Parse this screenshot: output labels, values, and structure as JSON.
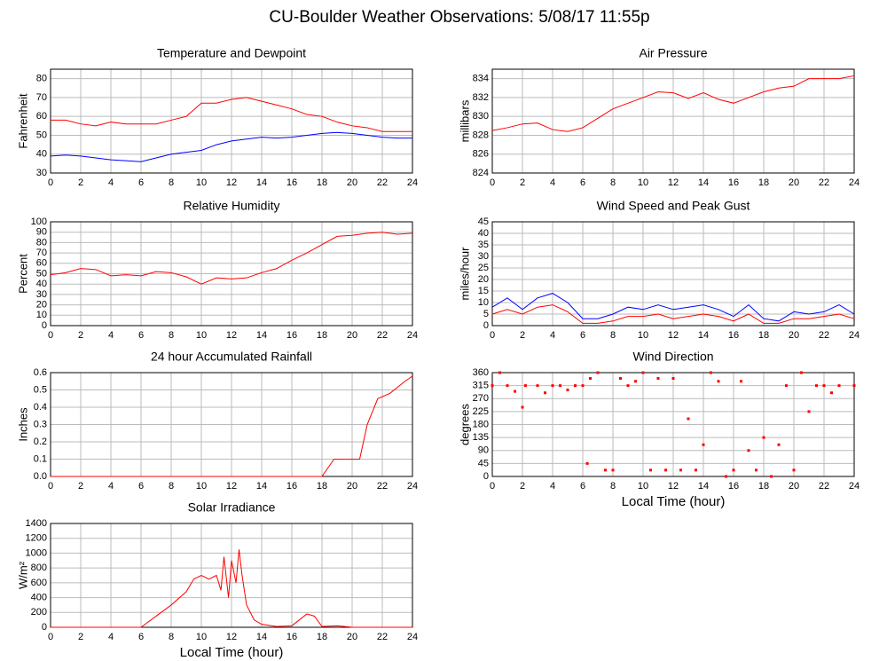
{
  "title": "CU-Boulder Weather Observations: 5/08/17 11:55p",
  "chart_data": [
    {
      "type": "line",
      "title": "Temperature and Dewpoint",
      "ylabel": "Fahrenheit",
      "grid": true,
      "x": [
        0,
        1,
        2,
        3,
        4,
        5,
        6,
        7,
        8,
        9,
        10,
        11,
        12,
        13,
        14,
        15,
        16,
        17,
        18,
        19,
        20,
        21,
        22,
        23,
        24
      ],
      "series": [
        {
          "color": "#ff0000",
          "values": [
            58,
            58,
            56,
            55,
            57,
            56,
            56,
            56,
            58,
            60,
            67,
            67,
            69,
            70,
            68,
            66,
            64,
            61,
            60,
            57,
            55,
            54,
            52,
            52,
            52
          ]
        },
        {
          "color": "#0000ff",
          "values": [
            39,
            39.5,
            39,
            38,
            37,
            36.5,
            36,
            38,
            40,
            41,
            42,
            45,
            47,
            48,
            49,
            48.5,
            49,
            50,
            51,
            51.5,
            51,
            50,
            49,
            48.5,
            48.5
          ]
        }
      ],
      "xlim": [
        0,
        24
      ],
      "xticks": [
        0,
        2,
        4,
        6,
        8,
        10,
        12,
        14,
        16,
        18,
        20,
        22,
        24
      ],
      "ylim": [
        30,
        85
      ],
      "yticks": [
        30,
        40,
        50,
        60,
        70,
        80
      ]
    },
    {
      "type": "line",
      "title": "Air Pressure",
      "ylabel": "millibars",
      "grid": true,
      "x": [
        0,
        1,
        2,
        3,
        4,
        5,
        6,
        7,
        8,
        9,
        10,
        11,
        12,
        13,
        14,
        15,
        16,
        17,
        18,
        19,
        20,
        21,
        22,
        23,
        24
      ],
      "series": [
        {
          "color": "#ff0000",
          "values": [
            828.5,
            828.8,
            829.2,
            829.3,
            828.6,
            828.4,
            828.8,
            829.8,
            830.8,
            831.4,
            832,
            832.6,
            832.5,
            831.9,
            832.5,
            831.8,
            831.4,
            832,
            832.6,
            833,
            833.2,
            834,
            834,
            834,
            834.3
          ]
        }
      ],
      "xlim": [
        0,
        24
      ],
      "xticks": [
        0,
        2,
        4,
        6,
        8,
        10,
        12,
        14,
        16,
        18,
        20,
        22,
        24
      ],
      "ylim": [
        824,
        835
      ],
      "yticks": [
        824,
        826,
        828,
        830,
        832,
        834
      ]
    },
    {
      "type": "line",
      "title": "Relative Humidity",
      "ylabel": "Percent",
      "grid": true,
      "x": [
        0,
        1,
        2,
        3,
        4,
        5,
        6,
        7,
        8,
        9,
        10,
        11,
        12,
        13,
        14,
        15,
        16,
        17,
        18,
        19,
        20,
        21,
        22,
        23,
        24
      ],
      "series": [
        {
          "color": "#ff0000",
          "values": [
            49,
            51,
            55,
            54,
            48,
            49,
            48,
            52,
            51,
            47,
            40,
            46,
            45,
            46,
            51,
            55,
            63,
            70,
            78,
            86,
            87,
            89,
            90,
            88,
            89
          ]
        }
      ],
      "xlim": [
        0,
        24
      ],
      "xticks": [
        0,
        2,
        4,
        6,
        8,
        10,
        12,
        14,
        16,
        18,
        20,
        22,
        24
      ],
      "ylim": [
        0,
        100
      ],
      "yticks": [
        0,
        10,
        20,
        30,
        40,
        50,
        60,
        70,
        80,
        90,
        100
      ]
    },
    {
      "type": "line",
      "title": "Wind Speed and Peak Gust",
      "ylabel": "miles/hour",
      "grid": true,
      "x": [
        0,
        1,
        2,
        3,
        4,
        5,
        6,
        7,
        8,
        9,
        10,
        11,
        12,
        13,
        14,
        15,
        16,
        17,
        18,
        19,
        20,
        21,
        22,
        23,
        24
      ],
      "series": [
        {
          "color": "#0000ff",
          "values": [
            8,
            12,
            7,
            12,
            14,
            10,
            3,
            3,
            5,
            8,
            7,
            9,
            7,
            8,
            9,
            7,
            4,
            9,
            3,
            2,
            6,
            5,
            6,
            9,
            5
          ]
        },
        {
          "color": "#ff0000",
          "values": [
            5,
            7,
            5,
            8,
            9,
            6,
            1,
            1,
            2,
            4,
            4,
            5,
            3,
            4,
            5,
            4,
            2,
            5,
            1,
            1,
            3,
            3,
            4,
            5,
            3
          ]
        }
      ],
      "xlim": [
        0,
        24
      ],
      "xticks": [
        0,
        2,
        4,
        6,
        8,
        10,
        12,
        14,
        16,
        18,
        20,
        22,
        24
      ],
      "ylim": [
        0,
        45
      ],
      "yticks": [
        0,
        5,
        10,
        15,
        20,
        25,
        30,
        35,
        40,
        45
      ]
    },
    {
      "type": "line",
      "title": "24 hour Accumulated Rainfall",
      "ylabel": "Inches",
      "grid": true,
      "x": [
        0,
        18,
        18.8,
        20.5,
        21,
        21.7,
        22.5,
        23.5,
        24
      ],
      "series": [
        {
          "color": "#ff0000",
          "values": [
            0,
            0,
            0.1,
            0.1,
            0.3,
            0.45,
            0.48,
            0.55,
            0.58
          ]
        }
      ],
      "xlim": [
        0,
        24
      ],
      "xticks": [
        0,
        2,
        4,
        6,
        8,
        10,
        12,
        14,
        16,
        18,
        20,
        22,
        24
      ],
      "ylim": [
        0,
        0.6
      ],
      "yticks": [
        {
          "value": 0,
          "label": "0.0"
        },
        0.1,
        0.2,
        0.3,
        0.4,
        0.5,
        0.6
      ]
    },
    {
      "type": "scatter",
      "title": "Wind Direction",
      "ylabel": "degrees",
      "xlabel": "Local Time (hour)",
      "grid": true,
      "x": [
        0,
        0.5,
        1,
        1.5,
        2,
        2.2,
        3,
        3.5,
        4,
        4.5,
        5,
        5.5,
        6,
        6.3,
        6.5,
        7,
        7.5,
        8,
        8.5,
        9,
        9.5,
        10,
        10.5,
        11,
        11.5,
        12,
        12.5,
        13,
        13.5,
        14,
        14.5,
        15,
        15.5,
        16,
        16.5,
        17,
        17.5,
        18,
        18.5,
        19,
        19.5,
        20,
        20.5,
        21,
        21.5,
        22,
        22.5,
        23,
        24
      ],
      "series": [
        {
          "color": "#ff0000",
          "values": [
            315,
            360,
            315,
            295,
            240,
            315,
            315,
            290,
            315,
            315,
            300,
            315,
            315,
            45,
            340,
            360,
            22,
            22,
            340,
            315,
            330,
            360,
            22,
            340,
            22,
            340,
            22,
            200,
            22,
            110,
            360,
            330,
            0,
            22,
            330,
            90,
            22,
            135,
            0,
            110,
            315,
            22,
            360,
            225,
            315,
            315,
            290,
            315,
            315
          ]
        }
      ],
      "xlim": [
        0,
        24
      ],
      "xticks": [
        0,
        2,
        4,
        6,
        8,
        10,
        12,
        14,
        16,
        18,
        20,
        22,
        24
      ],
      "ylim": [
        0,
        360
      ],
      "yticks": [
        0,
        45,
        90,
        135,
        180,
        225,
        270,
        315,
        360
      ]
    },
    {
      "type": "line",
      "title": "Solar Irradiance",
      "ylabel": "W/m²",
      "xlabel": "Local Time (hour)",
      "grid": true,
      "x": [
        0,
        6,
        7,
        8,
        9,
        9.5,
        10,
        10.5,
        11,
        11.3,
        11.5,
        11.8,
        12,
        12.3,
        12.5,
        12.7,
        13,
        13.5,
        14,
        15,
        16,
        17,
        17.5,
        18,
        19,
        20,
        24
      ],
      "series": [
        {
          "color": "#ff0000",
          "values": [
            0,
            0,
            150,
            300,
            480,
            650,
            700,
            650,
            700,
            500,
            950,
            400,
            900,
            600,
            1050,
            700,
            300,
            100,
            40,
            10,
            20,
            180,
            150,
            10,
            20,
            0,
            0
          ]
        }
      ],
      "xlim": [
        0,
        24
      ],
      "xticks": [
        0,
        2,
        4,
        6,
        8,
        10,
        12,
        14,
        16,
        18,
        20,
        22,
        24
      ],
      "ylim": [
        0,
        1400
      ],
      "yticks": [
        0,
        200,
        400,
        600,
        800,
        1000,
        1200,
        1400
      ]
    }
  ]
}
